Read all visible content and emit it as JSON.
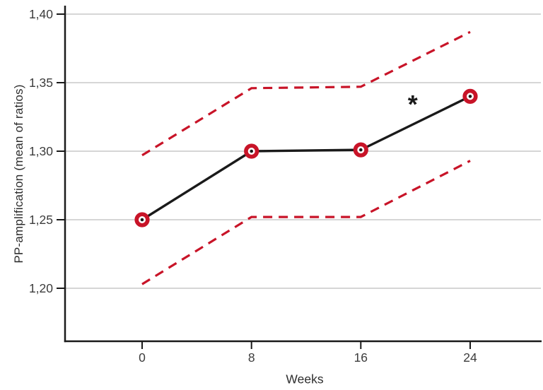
{
  "figure": {
    "background": "#ffffff"
  },
  "colors": {
    "ci_red": "#c81428",
    "mean_black": "#1a1a1a",
    "grid_gray": "#bdbdbd",
    "axis_black": "#1a1a1a",
    "tick_text": "#3c3c3c",
    "marker_fill": "#ffffff"
  },
  "chart_data": {
    "type": "line",
    "title": "",
    "xlabel": "Weeks",
    "ylabel": "PP-amplification (mean of ratios)",
    "decimal_separator": ",",
    "grid": "horizontal",
    "legend": "none",
    "x": [
      0,
      8,
      16,
      24
    ],
    "x_ticks": [
      {
        "label": "0",
        "value": 0
      },
      {
        "label": "8",
        "value": 8
      },
      {
        "label": "16",
        "value": 16
      },
      {
        "label": "24",
        "value": 24
      }
    ],
    "y_ticks": [
      {
        "label": "1,40",
        "value": 1.4
      },
      {
        "label": "1,35",
        "value": 1.35
      },
      {
        "label": "1,30",
        "value": 1.3
      },
      {
        "label": "1,25",
        "value": 1.25
      },
      {
        "label": "1,20",
        "value": 1.2
      }
    ],
    "ylim": [
      1.16,
      1.41
    ],
    "xlim": [
      -5.6,
      29.2
    ],
    "series": [
      {
        "name": "mean",
        "values": [
          1.25,
          1.3,
          1.301,
          1.34
        ],
        "line_style": "solid",
        "line_color": "#1a1a1a",
        "marker": "open-circle",
        "marker_color": "#c81428"
      },
      {
        "name": "upper-ci",
        "values": [
          1.297,
          1.346,
          1.347,
          1.387
        ],
        "line_style": "dashed",
        "line_color": "#c81428",
        "marker": "none"
      },
      {
        "name": "lower-ci",
        "values": [
          1.203,
          1.252,
          1.252,
          1.293
        ],
        "line_style": "dashed",
        "line_color": "#c81428",
        "marker": "none"
      }
    ],
    "annotations": [
      {
        "text": "*",
        "x": 19.8,
        "y": 1.337
      }
    ]
  }
}
